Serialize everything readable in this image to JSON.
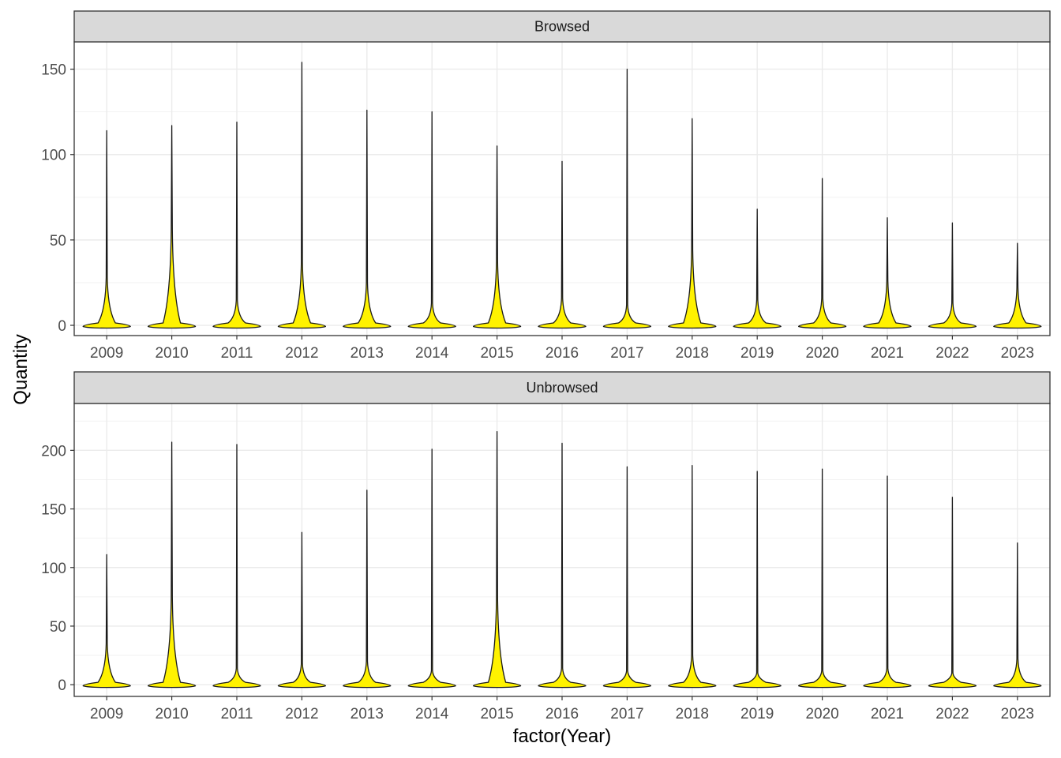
{
  "chart_data": {
    "type": "violin",
    "xlabel": "factor(Year)",
    "ylabel": "Quantity",
    "categories": [
      "2009",
      "2010",
      "2011",
      "2012",
      "2013",
      "2014",
      "2015",
      "2016",
      "2017",
      "2018",
      "2019",
      "2020",
      "2021",
      "2022",
      "2023"
    ],
    "fill_color": "#FFF200",
    "outline_color": "#1a1a1a",
    "grid": true,
    "facets": [
      {
        "name": "Browsed",
        "ylim": [
          -6,
          166
        ],
        "yticks": [
          0,
          50,
          100,
          150
        ],
        "max_values": [
          114,
          117,
          119,
          154,
          126,
          125,
          105,
          96,
          150,
          121,
          68,
          86,
          63,
          60,
          48
        ],
        "bulb_peak": [
          28,
          56,
          15,
          37,
          25,
          13,
          38,
          16,
          12,
          44,
          15,
          16,
          26,
          13,
          22
        ]
      },
      {
        "name": "Unbrowsed",
        "ylim": [
          -10,
          240
        ],
        "yticks": [
          0,
          50,
          100,
          150,
          200
        ],
        "max_values": [
          111,
          207,
          205,
          130,
          166,
          201,
          216,
          206,
          186,
          187,
          182,
          184,
          178,
          160,
          121
        ],
        "bulb_peak": [
          35,
          75,
          14,
          18,
          20,
          12,
          75,
          14,
          12,
          25,
          10,
          12,
          14,
          10,
          22
        ]
      }
    ]
  }
}
